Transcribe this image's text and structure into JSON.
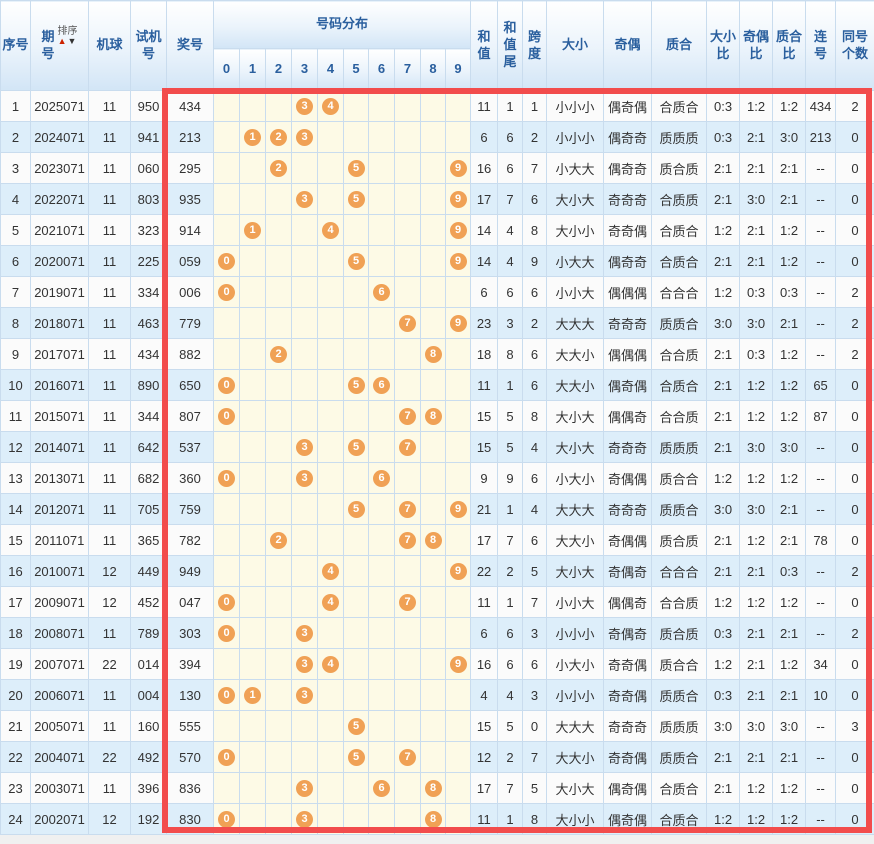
{
  "colors": {
    "header_text": "#2a5f9e",
    "grid_border": "#c9dcee",
    "row_odd_bg": "#fbfbfb",
    "row_even_bg": "#ddeefa",
    "ball_area_bg": "#fdfae6",
    "ball_bg": "#f0a155",
    "highlight_frame": "#f24c4c",
    "sort_up_arrow": "#cc2200",
    "sort_down_arrow": "#333333"
  },
  "table": {
    "headers": {
      "seq": "序号",
      "period": "期\n号",
      "sort": "排序",
      "machine": "机球",
      "test": "试机号",
      "prize": "奖号",
      "distribution": "号码分布",
      "digits": [
        "0",
        "1",
        "2",
        "3",
        "4",
        "5",
        "6",
        "7",
        "8",
        "9"
      ],
      "sum": "和\n值",
      "sumTail": "和\n值\n尾",
      "span": "跨\n度",
      "size": "大小",
      "oddEven": "奇偶",
      "primeComposite": "质合",
      "sizeRatio": "大小\n比",
      "oddEvenRatio": "奇偶\n比",
      "primeCompositeRatio": "质合\n比",
      "consecutive": "连\n号",
      "sameCount": "同号\n个数"
    },
    "rows": [
      {
        "seq": "1",
        "period": "2025071",
        "machine": "11",
        "test": "950",
        "prize": "434",
        "balls": [
          3,
          4
        ],
        "sum": "11",
        "sumTail": "1",
        "span": "1",
        "size": "小小小",
        "oddEven": "偶奇偶",
        "primeComposite": "合质合",
        "sizeRatio": "0:3",
        "oddEvenRatio": "1:2",
        "primeCompositeRatio": "1:2",
        "consecutive": "434",
        "sameCount": "2"
      },
      {
        "seq": "2",
        "period": "2024071",
        "machine": "11",
        "test": "941",
        "prize": "213",
        "balls": [
          1,
          2,
          3
        ],
        "sum": "6",
        "sumTail": "6",
        "span": "2",
        "size": "小小小",
        "oddEven": "偶奇奇",
        "primeComposite": "质质质",
        "sizeRatio": "0:3",
        "oddEvenRatio": "2:1",
        "primeCompositeRatio": "3:0",
        "consecutive": "213",
        "sameCount": "0"
      },
      {
        "seq": "3",
        "period": "2023071",
        "machine": "11",
        "test": "060",
        "prize": "295",
        "balls": [
          2,
          5,
          9
        ],
        "sum": "16",
        "sumTail": "6",
        "span": "7",
        "size": "小大大",
        "oddEven": "偶奇奇",
        "primeComposite": "质合质",
        "sizeRatio": "2:1",
        "oddEvenRatio": "2:1",
        "primeCompositeRatio": "2:1",
        "consecutive": "--",
        "sameCount": "0"
      },
      {
        "seq": "4",
        "period": "2022071",
        "machine": "11",
        "test": "803",
        "prize": "935",
        "balls": [
          3,
          5,
          9
        ],
        "sum": "17",
        "sumTail": "7",
        "span": "6",
        "size": "大小大",
        "oddEven": "奇奇奇",
        "primeComposite": "合质质",
        "sizeRatio": "2:1",
        "oddEvenRatio": "3:0",
        "primeCompositeRatio": "2:1",
        "consecutive": "--",
        "sameCount": "0"
      },
      {
        "seq": "5",
        "period": "2021071",
        "machine": "11",
        "test": "323",
        "prize": "914",
        "balls": [
          1,
          4,
          9
        ],
        "sum": "14",
        "sumTail": "4",
        "span": "8",
        "size": "大小小",
        "oddEven": "奇奇偶",
        "primeComposite": "合质合",
        "sizeRatio": "1:2",
        "oddEvenRatio": "2:1",
        "primeCompositeRatio": "1:2",
        "consecutive": "--",
        "sameCount": "0"
      },
      {
        "seq": "6",
        "period": "2020071",
        "machine": "11",
        "test": "225",
        "prize": "059",
        "balls": [
          0,
          5,
          9
        ],
        "sum": "14",
        "sumTail": "4",
        "span": "9",
        "size": "小大大",
        "oddEven": "偶奇奇",
        "primeComposite": "合质合",
        "sizeRatio": "2:1",
        "oddEvenRatio": "2:1",
        "primeCompositeRatio": "1:2",
        "consecutive": "--",
        "sameCount": "0"
      },
      {
        "seq": "7",
        "period": "2019071",
        "machine": "11",
        "test": "334",
        "prize": "006",
        "balls": [
          0,
          6
        ],
        "sum": "6",
        "sumTail": "6",
        "span": "6",
        "size": "小小大",
        "oddEven": "偶偶偶",
        "primeComposite": "合合合",
        "sizeRatio": "1:2",
        "oddEvenRatio": "0:3",
        "primeCompositeRatio": "0:3",
        "consecutive": "--",
        "sameCount": "2"
      },
      {
        "seq": "8",
        "period": "2018071",
        "machine": "11",
        "test": "463",
        "prize": "779",
        "balls": [
          7,
          9
        ],
        "sum": "23",
        "sumTail": "3",
        "span": "2",
        "size": "大大大",
        "oddEven": "奇奇奇",
        "primeComposite": "质质合",
        "sizeRatio": "3:0",
        "oddEvenRatio": "3:0",
        "primeCompositeRatio": "2:1",
        "consecutive": "--",
        "sameCount": "2"
      },
      {
        "seq": "9",
        "period": "2017071",
        "machine": "11",
        "test": "434",
        "prize": "882",
        "balls": [
          2,
          8
        ],
        "sum": "18",
        "sumTail": "8",
        "span": "6",
        "size": "大大小",
        "oddEven": "偶偶偶",
        "primeComposite": "合合质",
        "sizeRatio": "2:1",
        "oddEvenRatio": "0:3",
        "primeCompositeRatio": "1:2",
        "consecutive": "--",
        "sameCount": "2"
      },
      {
        "seq": "10",
        "period": "2016071",
        "machine": "11",
        "test": "890",
        "prize": "650",
        "balls": [
          0,
          5,
          6
        ],
        "sum": "11",
        "sumTail": "1",
        "span": "6",
        "size": "大大小",
        "oddEven": "偶奇偶",
        "primeComposite": "合质合",
        "sizeRatio": "2:1",
        "oddEvenRatio": "1:2",
        "primeCompositeRatio": "1:2",
        "consecutive": "65",
        "sameCount": "0"
      },
      {
        "seq": "11",
        "period": "2015071",
        "machine": "11",
        "test": "344",
        "prize": "807",
        "balls": [
          0,
          7,
          8
        ],
        "sum": "15",
        "sumTail": "5",
        "span": "8",
        "size": "大小大",
        "oddEven": "偶偶奇",
        "primeComposite": "合合质",
        "sizeRatio": "2:1",
        "oddEvenRatio": "1:2",
        "primeCompositeRatio": "1:2",
        "consecutive": "87",
        "sameCount": "0"
      },
      {
        "seq": "12",
        "period": "2014071",
        "machine": "11",
        "test": "642",
        "prize": "537",
        "balls": [
          3,
          5,
          7
        ],
        "sum": "15",
        "sumTail": "5",
        "span": "4",
        "size": "大小大",
        "oddEven": "奇奇奇",
        "primeComposite": "质质质",
        "sizeRatio": "2:1",
        "oddEvenRatio": "3:0",
        "primeCompositeRatio": "3:0",
        "consecutive": "--",
        "sameCount": "0"
      },
      {
        "seq": "13",
        "period": "2013071",
        "machine": "11",
        "test": "682",
        "prize": "360",
        "balls": [
          0,
          3,
          6
        ],
        "sum": "9",
        "sumTail": "9",
        "span": "6",
        "size": "小大小",
        "oddEven": "奇偶偶",
        "primeComposite": "质合合",
        "sizeRatio": "1:2",
        "oddEvenRatio": "1:2",
        "primeCompositeRatio": "1:2",
        "consecutive": "--",
        "sameCount": "0"
      },
      {
        "seq": "14",
        "period": "2012071",
        "machine": "11",
        "test": "705",
        "prize": "759",
        "balls": [
          5,
          7,
          9
        ],
        "sum": "21",
        "sumTail": "1",
        "span": "4",
        "size": "大大大",
        "oddEven": "奇奇奇",
        "primeComposite": "质质合",
        "sizeRatio": "3:0",
        "oddEvenRatio": "3:0",
        "primeCompositeRatio": "2:1",
        "consecutive": "--",
        "sameCount": "0"
      },
      {
        "seq": "15",
        "period": "2011071",
        "machine": "11",
        "test": "365",
        "prize": "782",
        "balls": [
          2,
          7,
          8
        ],
        "sum": "17",
        "sumTail": "7",
        "span": "6",
        "size": "大大小",
        "oddEven": "奇偶偶",
        "primeComposite": "质合质",
        "sizeRatio": "2:1",
        "oddEvenRatio": "1:2",
        "primeCompositeRatio": "2:1",
        "consecutive": "78",
        "sameCount": "0"
      },
      {
        "seq": "16",
        "period": "2010071",
        "machine": "12",
        "test": "449",
        "prize": "949",
        "balls": [
          4,
          9
        ],
        "sum": "22",
        "sumTail": "2",
        "span": "5",
        "size": "大小大",
        "oddEven": "奇偶奇",
        "primeComposite": "合合合",
        "sizeRatio": "2:1",
        "oddEvenRatio": "2:1",
        "primeCompositeRatio": "0:3",
        "consecutive": "--",
        "sameCount": "2"
      },
      {
        "seq": "17",
        "period": "2009071",
        "machine": "12",
        "test": "452",
        "prize": "047",
        "balls": [
          0,
          4,
          7
        ],
        "sum": "11",
        "sumTail": "1",
        "span": "7",
        "size": "小小大",
        "oddEven": "偶偶奇",
        "primeComposite": "合合质",
        "sizeRatio": "1:2",
        "oddEvenRatio": "1:2",
        "primeCompositeRatio": "1:2",
        "consecutive": "--",
        "sameCount": "0"
      },
      {
        "seq": "18",
        "period": "2008071",
        "machine": "11",
        "test": "789",
        "prize": "303",
        "balls": [
          0,
          3
        ],
        "sum": "6",
        "sumTail": "6",
        "span": "3",
        "size": "小小小",
        "oddEven": "奇偶奇",
        "primeComposite": "质合质",
        "sizeRatio": "0:3",
        "oddEvenRatio": "2:1",
        "primeCompositeRatio": "2:1",
        "consecutive": "--",
        "sameCount": "2"
      },
      {
        "seq": "19",
        "period": "2007071",
        "machine": "22",
        "test": "014",
        "prize": "394",
        "balls": [
          3,
          4,
          9
        ],
        "sum": "16",
        "sumTail": "6",
        "span": "6",
        "size": "小大小",
        "oddEven": "奇奇偶",
        "primeComposite": "质合合",
        "sizeRatio": "1:2",
        "oddEvenRatio": "2:1",
        "primeCompositeRatio": "1:2",
        "consecutive": "34",
        "sameCount": "0"
      },
      {
        "seq": "20",
        "period": "2006071",
        "machine": "11",
        "test": "004",
        "prize": "130",
        "balls": [
          0,
          1,
          3
        ],
        "sum": "4",
        "sumTail": "4",
        "span": "3",
        "size": "小小小",
        "oddEven": "奇奇偶",
        "primeComposite": "质质合",
        "sizeRatio": "0:3",
        "oddEvenRatio": "2:1",
        "primeCompositeRatio": "2:1",
        "consecutive": "10",
        "sameCount": "0"
      },
      {
        "seq": "21",
        "period": "2005071",
        "machine": "11",
        "test": "160",
        "prize": "555",
        "balls": [
          5
        ],
        "sum": "15",
        "sumTail": "5",
        "span": "0",
        "size": "大大大",
        "oddEven": "奇奇奇",
        "primeComposite": "质质质",
        "sizeRatio": "3:0",
        "oddEvenRatio": "3:0",
        "primeCompositeRatio": "3:0",
        "consecutive": "--",
        "sameCount": "3"
      },
      {
        "seq": "22",
        "period": "2004071",
        "machine": "22",
        "test": "492",
        "prize": "570",
        "balls": [
          0,
          5,
          7
        ],
        "sum": "12",
        "sumTail": "2",
        "span": "7",
        "size": "大大小",
        "oddEven": "奇奇偶",
        "primeComposite": "质质合",
        "sizeRatio": "2:1",
        "oddEvenRatio": "2:1",
        "primeCompositeRatio": "2:1",
        "consecutive": "--",
        "sameCount": "0"
      },
      {
        "seq": "23",
        "period": "2003071",
        "machine": "11",
        "test": "396",
        "prize": "836",
        "balls": [
          3,
          6,
          8
        ],
        "sum": "17",
        "sumTail": "7",
        "span": "5",
        "size": "大小大",
        "oddEven": "偶奇偶",
        "primeComposite": "合质合",
        "sizeRatio": "2:1",
        "oddEvenRatio": "1:2",
        "primeCompositeRatio": "1:2",
        "consecutive": "--",
        "sameCount": "0"
      },
      {
        "seq": "24",
        "period": "2002071",
        "machine": "12",
        "test": "192",
        "prize": "830",
        "balls": [
          0,
          3,
          8
        ],
        "sum": "11",
        "sumTail": "1",
        "span": "8",
        "size": "大小小",
        "oddEven": "偶奇偶",
        "primeComposite": "合质合",
        "sizeRatio": "1:2",
        "oddEvenRatio": "1:2",
        "primeCompositeRatio": "1:2",
        "consecutive": "--",
        "sameCount": "0"
      }
    ]
  }
}
